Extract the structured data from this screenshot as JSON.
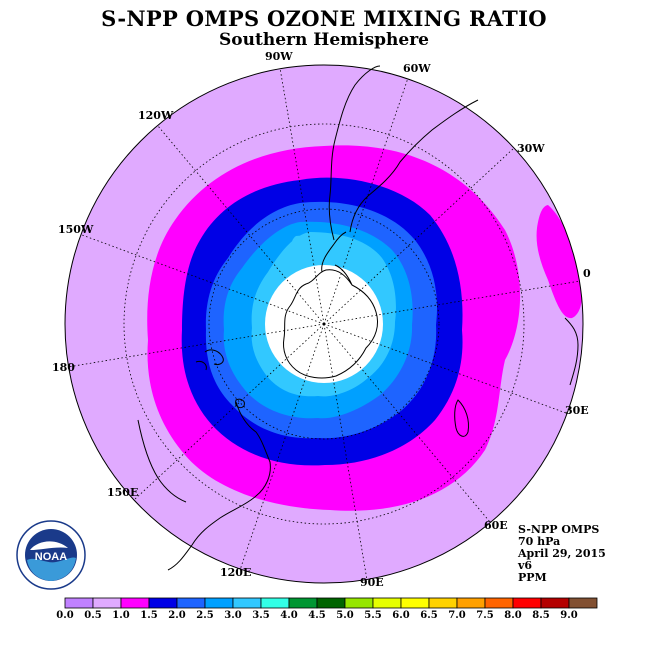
{
  "title": "S-NPP OMPS OZONE MIXING RATIO",
  "subtitle": "Southern Hemisphere",
  "map": {
    "projection": "polar-stereographic-south",
    "coastlines": true,
    "graticule": "dotted",
    "longitude_labels": [
      {
        "text": "90W",
        "lon": -90
      },
      {
        "text": "60W",
        "lon": -60
      },
      {
        "text": "30W",
        "lon": -30
      },
      {
        "text": "0",
        "lon": 0
      },
      {
        "text": "30E",
        "lon": 30
      },
      {
        "text": "60E",
        "lon": 60
      },
      {
        "text": "90E",
        "lon": 90
      },
      {
        "text": "120E",
        "lon": 120
      },
      {
        "text": "150E",
        "lon": 150
      },
      {
        "text": "180",
        "lon": 180
      },
      {
        "text": "150W",
        "lon": -150
      },
      {
        "text": "120W",
        "lon": -120
      }
    ],
    "background_color": "#e0aaff",
    "no_data_color": "#ffffff"
  },
  "info": {
    "instrument": "S-NPP OMPS",
    "pressure": "70 hPa",
    "date": "April 29, 2015",
    "version": "v6",
    "units": "PPM"
  },
  "logo": {
    "text": "NOAA"
  },
  "colorbar": {
    "labels": [
      "0.0",
      "0.5",
      "1.0",
      "1.5",
      "2.0",
      "2.5",
      "3.0",
      "3.5",
      "4.0",
      "4.5",
      "5.0",
      "5.5",
      "6.0",
      "6.5",
      "7.0",
      "7.5",
      "8.0",
      "8.5",
      "9.0"
    ],
    "colors": [
      "#c081ff",
      "#e0aaff",
      "#ff00ff",
      "#0000e6",
      "#1e64ff",
      "#00a0ff",
      "#32c8ff",
      "#32ffe6",
      "#009632",
      "#006400",
      "#96e600",
      "#e6ff00",
      "#ffff00",
      "#ffd200",
      "#ffa000",
      "#ff6400",
      "#ff0000",
      "#b40000",
      "#825032"
    ]
  },
  "contours": [
    {
      "level": "1.0-1.5",
      "color": "#ff00ff"
    },
    {
      "level": "1.5-2.0",
      "color": "#0000e6"
    },
    {
      "level": "2.0-2.5",
      "color": "#1e64ff"
    },
    {
      "level": "2.5-3.0",
      "color": "#00a0ff"
    },
    {
      "level": "3.0-3.5",
      "color": "#32c8ff"
    }
  ]
}
